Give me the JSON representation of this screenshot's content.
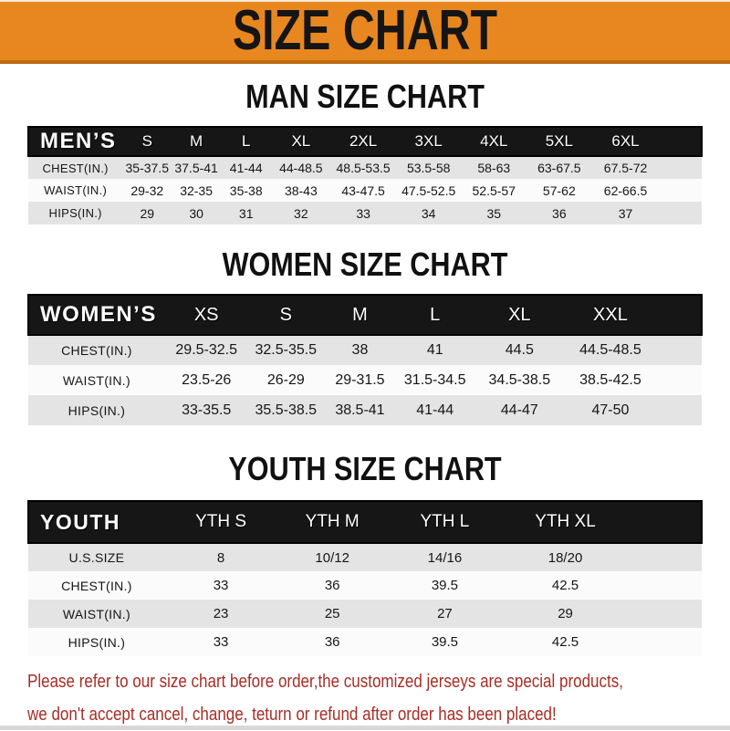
{
  "banner": {
    "title": "SIZE CHART"
  },
  "colors": {
    "banner_bg": "#E8871F",
    "banner_edge": "#BF6B10",
    "header_bar": "#161616",
    "row_gray": "#E4E4E4",
    "row_white": "#FBFBFB",
    "footer_red": "#A52E26"
  },
  "sections": [
    {
      "heading": "MAN SIZE CHART",
      "label": "MEN’S",
      "columns": [
        "S",
        "M",
        "L",
        "XL",
        "2XL",
        "3XL",
        "4XL",
        "5XL",
        "6XL"
      ],
      "rows": [
        {
          "label": "CHEST(IN.)",
          "values": [
            "35-37.5",
            "37.5-41",
            "41-44",
            "44-48.5",
            "48.5-53.5",
            "53.5-58",
            "58-63",
            "63-67.5",
            "67.5-72"
          ]
        },
        {
          "label": "WAIST(IN.)",
          "values": [
            "29-32",
            "32-35",
            "35-38",
            "38-43",
            "43-47.5",
            "47.5-52.5",
            "52.5-57",
            "57-62",
            "62-66.5"
          ]
        },
        {
          "label": "HIPS(IN.)",
          "values": [
            "29",
            "30",
            "31",
            "32",
            "33",
            "34",
            "35",
            "36",
            "37"
          ]
        }
      ]
    },
    {
      "heading": "WOMEN SIZE CHART",
      "label": "WOMEN’S",
      "columns": [
        "XS",
        "S",
        "M",
        "L",
        "XL",
        "XXL"
      ],
      "rows": [
        {
          "label": "CHEST(IN.)",
          "values": [
            "29.5-32.5",
            "32.5-35.5",
            "38",
            "41",
            "44.5",
            "44.5-48.5"
          ]
        },
        {
          "label": "WAIST(IN.)",
          "values": [
            "23.5-26",
            "26-29",
            "29-31.5",
            "31.5-34.5",
            "34.5-38.5",
            "38.5-42.5"
          ]
        },
        {
          "label": "HIPS(IN.)",
          "values": [
            "33-35.5",
            "35.5-38.5",
            "38.5-41",
            "41-44",
            "44-47",
            "47-50"
          ]
        }
      ]
    },
    {
      "heading": "YOUTH SIZE CHART",
      "label": "YOUTH",
      "columns": [
        "YTH S",
        "YTH M",
        "YTH L",
        "YTH XL"
      ],
      "rows": [
        {
          "label": "U.S.SIZE",
          "values": [
            "8",
            "10/12",
            "14/16",
            "18/20"
          ]
        },
        {
          "label": "CHEST(IN.)",
          "values": [
            "33",
            "36",
            "39.5",
            "42.5"
          ]
        },
        {
          "label": "WAIST(IN.)",
          "values": [
            "23",
            "25",
            "27",
            "29"
          ]
        },
        {
          "label": "HIPS(IN.)",
          "values": [
            "33",
            "36",
            "39.5",
            "42.5"
          ]
        }
      ]
    }
  ],
  "footer": {
    "line1": "Please refer to our size chart before order,the customized jerseys are special products,",
    "line2": "we don't accept cancel, change, teturn or refund after order has been placed!"
  }
}
